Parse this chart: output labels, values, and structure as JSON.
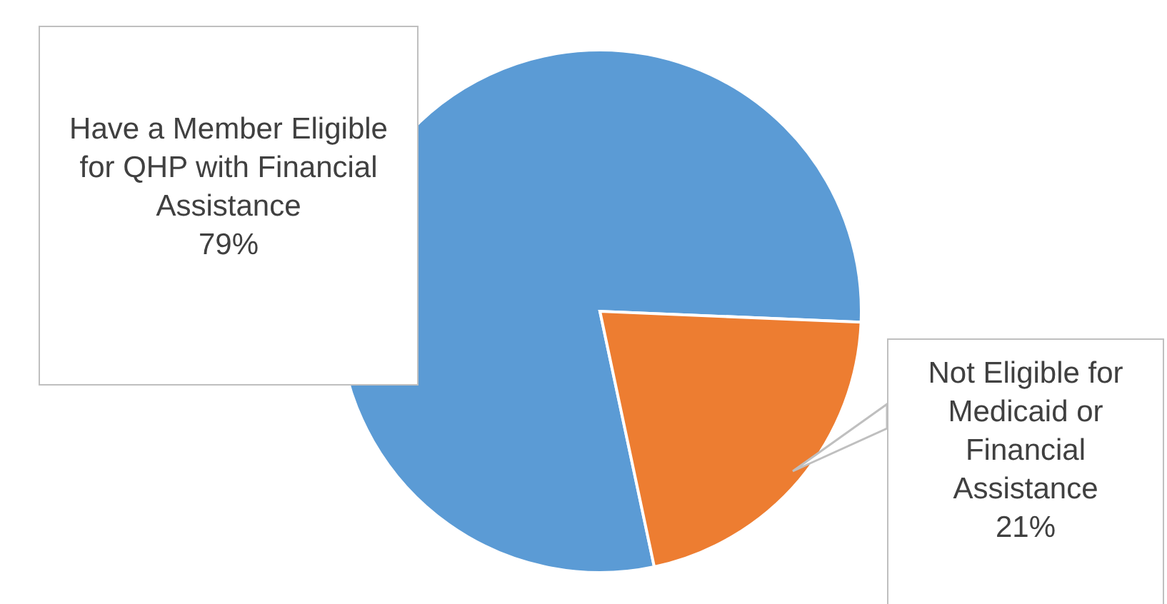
{
  "chart_data": {
    "type": "pie",
    "categories": [
      "Have a Member Eligible for QHP with Financial Assistance",
      "Not Eligible for Medicaid or Financial Assistance"
    ],
    "values": [
      79,
      21
    ],
    "colors": [
      "#5b9bd5",
      "#ed7d31"
    ],
    "value_labels": [
      "79%",
      "21%"
    ]
  }
}
